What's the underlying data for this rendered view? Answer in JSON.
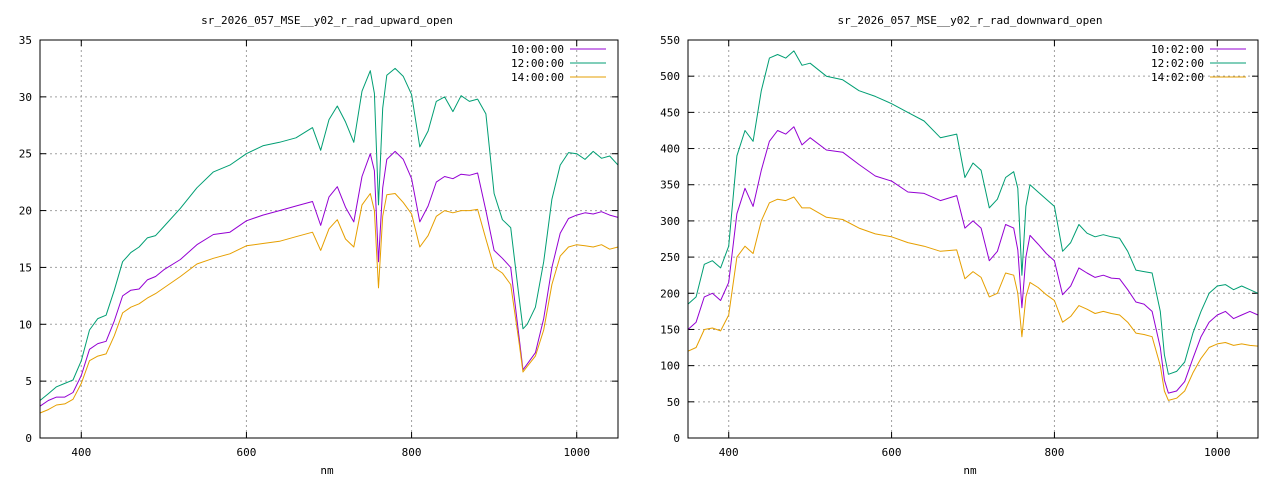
{
  "colors": {
    "background": "#ffffff",
    "grid": "#a0a0a0",
    "axis": "#000000"
  },
  "chart_data": [
    {
      "type": "line",
      "title": "sr_2026_057_MSE__y02_r_rad_upward_open",
      "xlabel": "nm",
      "ylabel": "",
      "xlim": [
        350,
        1050
      ],
      "ylim": [
        0,
        35
      ],
      "xticks": [
        400,
        600,
        800,
        1000
      ],
      "yticks": [
        0,
        5,
        10,
        15,
        20,
        25,
        30,
        35
      ],
      "xtick_labels": [
        "400",
        "600",
        "800",
        "1000"
      ],
      "ytick_labels": [
        "0",
        "5",
        "10",
        "15",
        "20",
        "25",
        "30",
        "35"
      ],
      "grid": true,
      "legend_position": "top-right",
      "x": [
        350,
        360,
        370,
        380,
        390,
        400,
        410,
        420,
        430,
        440,
        450,
        460,
        470,
        480,
        490,
        500,
        520,
        540,
        560,
        580,
        600,
        620,
        640,
        660,
        680,
        690,
        700,
        710,
        720,
        730,
        740,
        750,
        755,
        760,
        765,
        770,
        780,
        790,
        800,
        810,
        820,
        830,
        840,
        850,
        860,
        870,
        880,
        890,
        900,
        910,
        920,
        930,
        935,
        940,
        950,
        960,
        970,
        980,
        990,
        1000,
        1010,
        1020,
        1030,
        1040,
        1050
      ],
      "series": [
        {
          "name": "10:00:00",
          "color": "#9400d3",
          "values": [
            2.8,
            3.3,
            3.6,
            3.6,
            4.0,
            5.5,
            7.8,
            8.3,
            8.5,
            10.3,
            12.5,
            13.0,
            13.1,
            13.9,
            14.2,
            14.8,
            15.7,
            17.0,
            17.9,
            18.1,
            19.1,
            19.6,
            20.0,
            20.4,
            20.8,
            18.7,
            21.2,
            22.1,
            20.3,
            19.0,
            23.0,
            25.0,
            23.5,
            15.5,
            22.0,
            24.5,
            25.2,
            24.5,
            22.8,
            19.0,
            20.4,
            22.5,
            23.0,
            22.8,
            23.2,
            23.1,
            23.3,
            20.0,
            16.5,
            15.8,
            15.0,
            9.0,
            6.0,
            6.5,
            7.5,
            10.5,
            15.0,
            18.0,
            19.3,
            19.6,
            19.8,
            19.7,
            19.9,
            19.6,
            19.4
          ]
        },
        {
          "name": "12:00:00",
          "color": "#009e73",
          "values": [
            3.3,
            3.9,
            4.5,
            4.8,
            5.1,
            6.8,
            9.5,
            10.5,
            10.8,
            13.0,
            15.5,
            16.3,
            16.8,
            17.6,
            17.8,
            18.6,
            20.2,
            22.0,
            23.4,
            24.0,
            25.0,
            25.7,
            26.0,
            26.4,
            27.3,
            25.3,
            28.0,
            29.2,
            27.8,
            26.0,
            30.5,
            32.3,
            30.3,
            20.5,
            29.0,
            31.9,
            32.5,
            31.8,
            30.2,
            25.6,
            27.0,
            29.6,
            30.0,
            28.7,
            30.1,
            29.6,
            29.8,
            28.5,
            21.5,
            19.2,
            18.5,
            12.5,
            9.6,
            10.0,
            11.5,
            15.5,
            21.0,
            24.0,
            25.1,
            25.0,
            24.5,
            25.2,
            24.6,
            24.8,
            24.0
          ]
        },
        {
          "name": "14:00:00",
          "color": "#e69f00",
          "values": [
            2.2,
            2.5,
            2.9,
            3.0,
            3.4,
            4.8,
            6.8,
            7.2,
            7.4,
            9.0,
            11.0,
            11.5,
            11.8,
            12.3,
            12.7,
            13.2,
            14.2,
            15.3,
            15.8,
            16.2,
            16.9,
            17.1,
            17.3,
            17.7,
            18.1,
            16.5,
            18.4,
            19.2,
            17.5,
            16.8,
            20.5,
            21.5,
            20.0,
            13.2,
            19.5,
            21.4,
            21.5,
            20.7,
            19.7,
            16.8,
            17.8,
            19.5,
            20.0,
            19.8,
            20.0,
            20.0,
            20.1,
            17.5,
            15.0,
            14.5,
            13.5,
            8.5,
            5.8,
            6.3,
            7.2,
            9.5,
            13.5,
            16.0,
            16.8,
            17.0,
            16.9,
            16.8,
            17.0,
            16.6,
            16.8
          ]
        }
      ]
    },
    {
      "type": "line",
      "title": "sr_2026_057_MSE__y02_r_rad_downward_open",
      "xlabel": "nm",
      "ylabel": "",
      "xlim": [
        350,
        1050
      ],
      "ylim": [
        0,
        550
      ],
      "xticks": [
        400,
        600,
        800,
        1000
      ],
      "yticks": [
        0,
        50,
        100,
        150,
        200,
        250,
        300,
        350,
        400,
        450,
        500,
        550
      ],
      "xtick_labels": [
        "400",
        "600",
        "800",
        "1000"
      ],
      "ytick_labels": [
        "0",
        "50",
        "100",
        "150",
        "200",
        "250",
        "300",
        "350",
        "400",
        "450",
        "500",
        "550"
      ],
      "grid": true,
      "legend_position": "top-right",
      "x": [
        350,
        360,
        370,
        380,
        390,
        400,
        410,
        420,
        430,
        440,
        450,
        460,
        470,
        480,
        490,
        500,
        520,
        540,
        560,
        580,
        600,
        620,
        640,
        660,
        680,
        690,
        700,
        710,
        720,
        730,
        740,
        750,
        755,
        760,
        765,
        770,
        780,
        790,
        800,
        810,
        820,
        830,
        840,
        850,
        860,
        870,
        880,
        890,
        900,
        910,
        920,
        930,
        935,
        940,
        950,
        960,
        970,
        980,
        990,
        1000,
        1010,
        1020,
        1030,
        1040,
        1050
      ],
      "series": [
        {
          "name": "10:02:00",
          "color": "#9400d3",
          "values": [
            150,
            160,
            195,
            200,
            190,
            215,
            310,
            345,
            320,
            370,
            410,
            425,
            420,
            430,
            405,
            415,
            398,
            395,
            378,
            362,
            355,
            340,
            338,
            328,
            335,
            290,
            300,
            290,
            245,
            258,
            295,
            290,
            260,
            180,
            250,
            280,
            268,
            255,
            245,
            198,
            210,
            235,
            228,
            222,
            225,
            221,
            220,
            205,
            188,
            185,
            175,
            125,
            80,
            62,
            65,
            78,
            110,
            140,
            160,
            170,
            175,
            165,
            170,
            175,
            170
          ]
        },
        {
          "name": "12:02:00",
          "color": "#009e73",
          "values": [
            185,
            195,
            240,
            245,
            235,
            265,
            390,
            425,
            410,
            480,
            525,
            530,
            525,
            535,
            515,
            518,
            500,
            495,
            480,
            472,
            462,
            450,
            438,
            415,
            420,
            360,
            380,
            370,
            318,
            330,
            360,
            368,
            345,
            225,
            320,
            350,
            340,
            330,
            320,
            258,
            270,
            295,
            283,
            278,
            281,
            278,
            276,
            258,
            232,
            230,
            228,
            175,
            115,
            88,
            92,
            105,
            145,
            175,
            200,
            210,
            212,
            205,
            210,
            205,
            200
          ]
        },
        {
          "name": "14:02:00",
          "color": "#e69f00",
          "values": [
            120,
            125,
            150,
            152,
            148,
            170,
            250,
            265,
            255,
            300,
            325,
            330,
            328,
            333,
            318,
            318,
            305,
            302,
            290,
            282,
            278,
            270,
            265,
            258,
            260,
            220,
            230,
            222,
            195,
            200,
            228,
            225,
            200,
            140,
            195,
            215,
            208,
            198,
            190,
            160,
            168,
            183,
            178,
            172,
            175,
            172,
            170,
            160,
            145,
            143,
            140,
            100,
            65,
            52,
            55,
            65,
            90,
            110,
            125,
            130,
            132,
            128,
            130,
            128,
            127
          ]
        }
      ]
    }
  ]
}
